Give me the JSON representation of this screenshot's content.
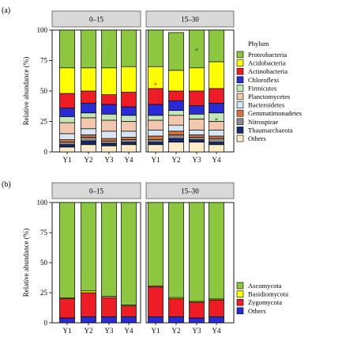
{
  "chart_data": [
    {
      "type": "stacked_bar",
      "panel_label": "(a)",
      "facets": [
        "0–15",
        "15–30"
      ],
      "categories": [
        "Y1",
        "Y2",
        "Y3",
        "Y4"
      ],
      "ylabel": "Relative abundance (%)",
      "ylim": [
        0,
        100
      ],
      "yticks": [
        "0",
        "25",
        "50",
        "75",
        "100"
      ],
      "legend_title": "Phylum",
      "legend_position": "right",
      "series": [
        {
          "name": "Proteobacteria",
          "color": "#8dc63f",
          "values": [
            [
              31,
              31,
              31,
              30
            ],
            [
              30,
              31,
              31,
              26
            ]
          ]
        },
        {
          "name": "Acidobacteria",
          "color": "#ffff00",
          "values": [
            [
              21,
              19,
              22,
              21
            ],
            [
              18,
              17,
              19,
              22
            ]
          ]
        },
        {
          "name": "Actinobacteria",
          "color": "#ee1c25",
          "values": [
            [
              12,
              10,
              8,
              12
            ],
            [
              13,
              8,
              12,
              12
            ]
          ]
        },
        {
          "name": "Chloroflexi",
          "color": "#2b2bd6",
          "values": [
            [
              7,
              8,
              8,
              7
            ],
            [
              9,
              8,
              7,
              8
            ]
          ]
        },
        {
          "name": "Firmicutes",
          "color": "#c2e6b8",
          "values": [
            [
              5,
              4,
              5,
              5
            ],
            [
              4,
              4,
              4,
              7
            ]
          ]
        },
        {
          "name": "Planctomycetes",
          "color": "#f3c7ae",
          "values": [
            [
              9,
              9,
              9,
              8
            ],
            [
              8,
              8,
              9,
              7
            ]
          ]
        },
        {
          "name": "Bacteroidetes",
          "color": "#d6e6f5",
          "values": [
            [
              5,
              5,
              6,
              5
            ],
            [
              5,
              5,
              4,
              5
            ]
          ]
        },
        {
          "name": "Gemmatimonadetes",
          "color": "#d9733c",
          "values": [
            [
              2,
              2,
              2,
              2
            ],
            [
              3,
              3,
              2,
              2
            ]
          ]
        },
        {
          "name": "Nitrospirae",
          "color": "#8c8c8c",
          "values": [
            [
              2,
              3,
              2,
              2
            ],
            [
              2,
              3,
              2,
              3
            ]
          ]
        },
        {
          "name": "Thaumarchaeota",
          "color": "#1a2a6e",
          "values": [
            [
              2,
              3,
              2,
              2
            ],
            [
              2,
              3,
              2,
              2
            ]
          ]
        },
        {
          "name": "Others",
          "color": "#fdebc7",
          "values": [
            [
              4,
              6,
              5,
              6
            ],
            [
              6,
              8,
              8,
              6
            ]
          ]
        }
      ],
      "annotations": [
        {
          "facet": "15–30",
          "category": "Y1",
          "text": "*",
          "color": "#ee1c25",
          "at_value": 56
        },
        {
          "facet": "15–30",
          "category": "Y3",
          "text": "*",
          "color": "#1a5c1a",
          "at_value": 84
        },
        {
          "facet": "15–30",
          "category": "Y4",
          "text": "*",
          "color": "#1a5c1a",
          "at_value": 27
        }
      ]
    },
    {
      "type": "stacked_bar",
      "panel_label": "(b)",
      "facets": [
        "0–15",
        "15–30"
      ],
      "categories": [
        "Y1",
        "Y2",
        "Y3",
        "Y4"
      ],
      "ylabel": "Relative abundance (%)",
      "ylim": [
        0,
        100
      ],
      "yticks": [
        "0",
        "25",
        "50",
        "75",
        "100"
      ],
      "legend_position": "bottom-right",
      "series": [
        {
          "name": "Others",
          "color": "#2b2bd6",
          "values": [
            [
              4,
              5,
              5,
              5
            ],
            [
              5,
              5,
              4,
              5
            ]
          ]
        },
        {
          "name": "Zygomycota",
          "color": "#ee1c25",
          "values": [
            [
              16,
              20,
              16,
              9
            ],
            [
              25,
              15,
              13,
              14
            ]
          ]
        },
        {
          "name": "Basidiomycota",
          "color": "#ffff00",
          "values": [
            [
              0.6,
              1.5,
              1,
              0.8
            ],
            [
              0.8,
              1,
              0.8,
              0.8
            ]
          ]
        },
        {
          "name": "Ascomycota",
          "color": "#8dc63f",
          "values": [
            [
              79.4,
              73.5,
              78,
              85.2
            ],
            [
              69.2,
              79,
              82.2,
              80.2
            ]
          ]
        }
      ],
      "annotations": [
        {
          "facet": "15–30",
          "category": "Y1",
          "text": "*",
          "color": "#ee1c25",
          "at_value": 18
        }
      ]
    }
  ]
}
